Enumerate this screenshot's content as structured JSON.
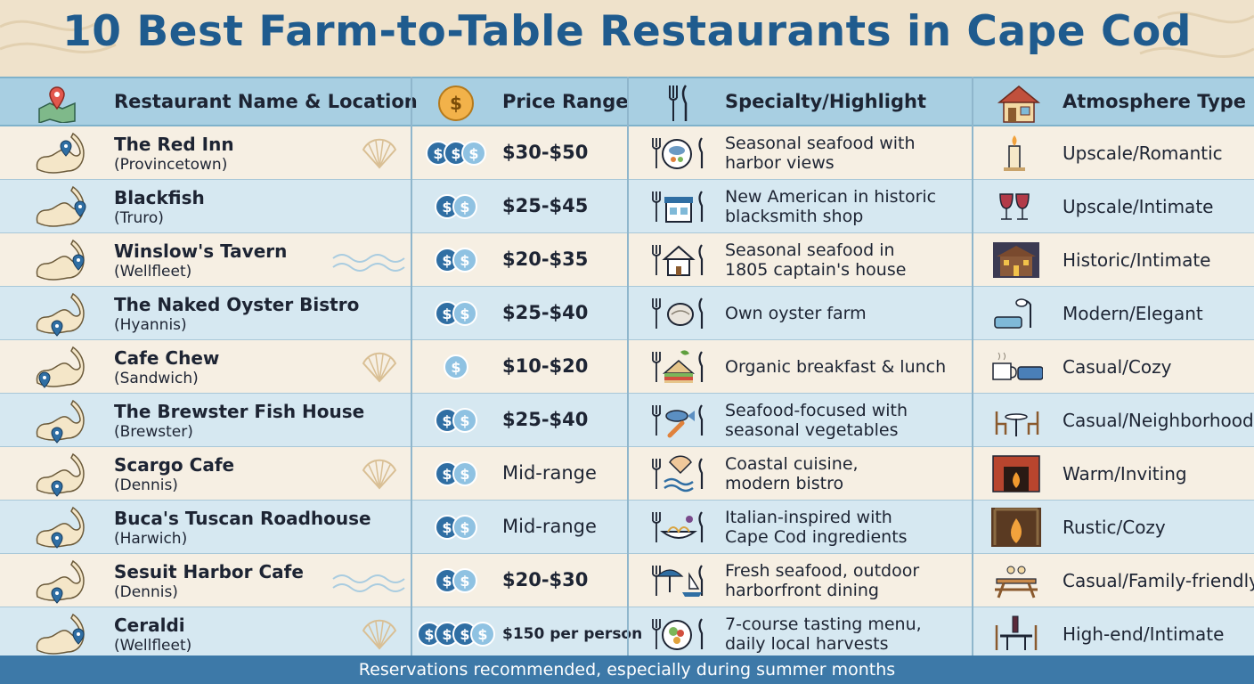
{
  "title": "10 Best Farm-to-Table Restaurants in Cape Cod",
  "headers": {
    "name": "Restaurant Name & Location",
    "price": "Price Range",
    "specialty": "Specialty/Highlight",
    "atmosphere": "Atmosphere Type"
  },
  "colors": {
    "title": "#1f5b8e",
    "header_bg": "#a8cfe2",
    "row_cream": "#f6efe3",
    "row_blue": "#d6e8f1",
    "footer_bg": "#3d79a8",
    "coin": "#2f6ea3"
  },
  "rows": [
    {
      "name": "The Red Inn",
      "location": "(Provincetown)",
      "price": "$30-$50",
      "coins": 3,
      "specialty": [
        "Seasonal seafood with",
        "harbor views"
      ],
      "atmosphere": "Upscale/Romantic",
      "specialty_icon": "seafood-plate-icon",
      "atmosphere_icon": "candle-icon"
    },
    {
      "name": "Blackfish",
      "location": "(Truro)",
      "price": "$25-$45",
      "coins": 2,
      "specialty": [
        "New American in historic",
        "blacksmith shop"
      ],
      "atmosphere": "Upscale/Intimate",
      "specialty_icon": "shop-icon",
      "atmosphere_icon": "wine-glasses-icon"
    },
    {
      "name": "Winslow's Tavern",
      "location": "(Wellfleet)",
      "price": "$20-$35",
      "coins": 2,
      "specialty": [
        "Seasonal seafood in",
        "1805 captain's house"
      ],
      "atmosphere": "Historic/Intimate",
      "specialty_icon": "house-icon",
      "atmosphere_icon": "historic-house-icon"
    },
    {
      "name": "The Naked Oyster Bistro",
      "location": "(Hyannis)",
      "price": "$25-$40",
      "coins": 2,
      "specialty": [
        "Own oyster farm"
      ],
      "atmosphere": "Modern/Elegant",
      "specialty_icon": "oyster-icon",
      "atmosphere_icon": "lamp-sofa-icon"
    },
    {
      "name": "Cafe Chew",
      "location": "(Sandwich)",
      "price": "$10-$20",
      "coins": 1,
      "specialty": [
        "Organic breakfast & lunch"
      ],
      "atmosphere": "Casual/Cozy",
      "specialty_icon": "sandwich-icon",
      "atmosphere_icon": "coffee-sofa-icon"
    },
    {
      "name": "The Brewster Fish House",
      "location": "(Brewster)",
      "price": "$25-$40",
      "coins": 2,
      "specialty": [
        "Seafood-focused with",
        "seasonal vegetables"
      ],
      "atmosphere": "Casual/Neighborhood",
      "specialty_icon": "fish-carrot-icon",
      "atmosphere_icon": "bistro-table-icon"
    },
    {
      "name": "Scargo Cafe",
      "location": "(Dennis)",
      "price": "Mid-range",
      "coins": 2,
      "specialty": [
        "Coastal cuisine,",
        "modern bistro"
      ],
      "atmosphere": "Warm/Inviting",
      "specialty_icon": "shell-wave-icon",
      "atmosphere_icon": "fireplace-icon"
    },
    {
      "name": "Buca's Tuscan Roadhouse",
      "location": "(Harwich)",
      "price": "Mid-range",
      "coins": 2,
      "specialty": [
        "Italian-inspired with",
        "Cape Cod ingredients"
      ],
      "atmosphere": "Rustic/Cozy",
      "specialty_icon": "pasta-icon",
      "atmosphere_icon": "rustic-fire-icon"
    },
    {
      "name": "Sesuit Harbor Cafe",
      "location": "(Dennis)",
      "price": "$20-$30",
      "coins": 2,
      "specialty": [
        "Fresh seafood, outdoor",
        "harborfront dining"
      ],
      "atmosphere": "Casual/Family-friendly",
      "specialty_icon": "umbrella-boat-icon",
      "atmosphere_icon": "picnic-table-icon"
    },
    {
      "name": "Ceraldi",
      "location": "(Wellfleet)",
      "price": "$150 per person",
      "coins": 4,
      "specialty": [
        "7-course tasting menu,",
        "daily local harvests"
      ],
      "atmosphere": "High-end/Intimate",
      "specialty_icon": "salad-plate-icon",
      "atmosphere_icon": "wine-table-icon"
    }
  ],
  "footer": "Reservations recommended, especially during summer months"
}
